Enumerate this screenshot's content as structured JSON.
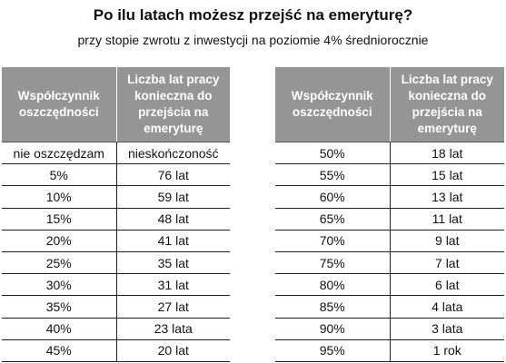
{
  "title": "Po ilu latach możesz przejść na emeryturę?",
  "subtitle": "przy stopie zwrotu z inwestycji na poziomie 4% średniorocznie",
  "header_color": "#959595",
  "tables": [
    {
      "col1_header": "Współczynnik oszczędności",
      "col2_header": "Liczba lat pracy konieczna do przejścia na emeryturę",
      "rows": [
        {
          "rate": "nie oszczędzam",
          "years": "nieskończoność"
        },
        {
          "rate": "5%",
          "years": "76 lat"
        },
        {
          "rate": "10%",
          "years": "59 lat"
        },
        {
          "rate": "15%",
          "years": "48 lat"
        },
        {
          "rate": "20%",
          "years": "41 lat"
        },
        {
          "rate": "25%",
          "years": "35 lat"
        },
        {
          "rate": "30%",
          "years": "31 lat"
        },
        {
          "rate": "35%",
          "years": "27 lat"
        },
        {
          "rate": "40%",
          "years": "23 lata"
        },
        {
          "rate": "45%",
          "years": "20 lat"
        }
      ]
    },
    {
      "col1_header": "Współczynnik oszczędności",
      "col2_header": "Liczba lat pracy konieczna do przejścia na emeryturę",
      "rows": [
        {
          "rate": "50%",
          "years": "18 lat"
        },
        {
          "rate": "55%",
          "years": "15 lat"
        },
        {
          "rate": "60%",
          "years": "13 lat"
        },
        {
          "rate": "65%",
          "years": "11 lat"
        },
        {
          "rate": "70%",
          "years": "9 lat"
        },
        {
          "rate": "75%",
          "years": "7 lat"
        },
        {
          "rate": "80%",
          "years": "6 lat"
        },
        {
          "rate": "85%",
          "years": "4 lata"
        },
        {
          "rate": "90%",
          "years": "3 lata"
        },
        {
          "rate": "95%",
          "years": "1 rok"
        }
      ]
    }
  ]
}
